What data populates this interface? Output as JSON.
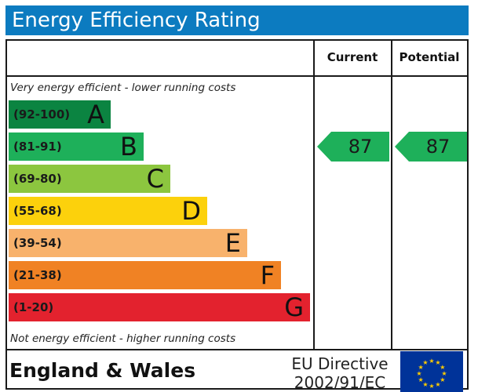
{
  "title": "Energy Efficiency Rating",
  "columns": {
    "current": "Current",
    "potential": "Potential"
  },
  "captions": {
    "top": "Very energy efficient - lower running costs",
    "bottom": "Not energy efficient - higher running costs"
  },
  "chart_data": {
    "type": "bar",
    "bands": [
      {
        "range": "(92-100)",
        "letter": "A",
        "color": "#0b8441"
      },
      {
        "range": "(81-91)",
        "letter": "B",
        "color": "#1eb05a"
      },
      {
        "range": "(69-80)",
        "letter": "C",
        "color": "#8cc63f"
      },
      {
        "range": "(55-68)",
        "letter": "D",
        "color": "#fcd10c"
      },
      {
        "range": "(39-54)",
        "letter": "E",
        "color": "#f8b26c"
      },
      {
        "range": "(21-38)",
        "letter": "F",
        "color": "#f08224"
      },
      {
        "range": "(1-20)",
        "letter": "G",
        "color": "#e3222e"
      }
    ],
    "current": {
      "value": "87",
      "band": "B",
      "color": "#1eb05a"
    },
    "potential": {
      "value": "87",
      "band": "B",
      "color": "#1eb05a"
    }
  },
  "footer": {
    "region": "England & Wales",
    "directive_line1": "EU Directive",
    "directive_line2": "2002/91/EC",
    "flag_colors": {
      "background": "#003399",
      "stars": "#ffcc00"
    }
  },
  "colors": {
    "title_bar": "#0c7bc0",
    "border": "#1a1a1a"
  }
}
